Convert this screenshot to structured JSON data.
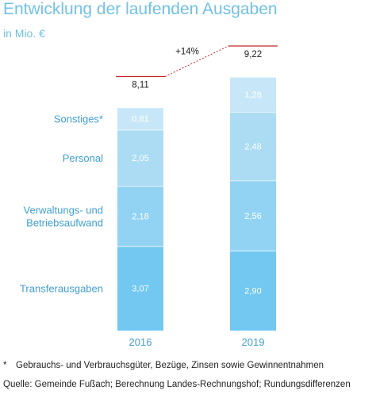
{
  "title": "Entwicklung der laufenden Ausgaben",
  "subtitle": "in Mio. €",
  "footnote": {
    "marker": "*",
    "text": "Gebrauchs- und Verbrauchsgüter, Bezüge, Zinsen sowie Gewinnentnahmen"
  },
  "source": "Quelle: Gemeinde Fußach; Berechnung Landes-Rechnungshof; Rundungsdifferenzen",
  "colors": {
    "title": "#72c1e6",
    "label": "#3f9fd3",
    "bar_text": "#ffffff",
    "total_line": "#c0282e",
    "seg_Transferausgaben": "#72c8f1",
    "seg_Verwaltungs": "#92d3f3",
    "seg_Personal": "#abdcf4",
    "seg_Sonstiges": "#c7e7f8"
  },
  "chart_data": {
    "type": "bar",
    "stacked": true,
    "categories": [
      "2016",
      "2019"
    ],
    "series": [
      {
        "name": "Transferausgaben",
        "lines": [
          "Transferausgaben"
        ],
        "values": [
          3.07,
          2.9
        ],
        "labels": [
          "3,07",
          "2,90"
        ],
        "color": "#72c8f1"
      },
      {
        "name": "Verwaltungs- und Betriebsaufwand",
        "lines": [
          "Verwaltungs- und",
          "Betriebsaufwand"
        ],
        "values": [
          2.18,
          2.56
        ],
        "labels": [
          "2,18",
          "2,56"
        ],
        "color": "#92d3f3"
      },
      {
        "name": "Personal",
        "lines": [
          "Personal"
        ],
        "values": [
          2.05,
          2.48
        ],
        "labels": [
          "2,05",
          "2,48"
        ],
        "color": "#abdcf4"
      },
      {
        "name": "Sonstiges*",
        "lines": [
          "Sonstiges*"
        ],
        "values": [
          0.81,
          1.28
        ],
        "labels": [
          "0,81",
          "1,28"
        ],
        "color": "#c7e7f8"
      }
    ],
    "totals": [
      8.11,
      9.22
    ],
    "total_labels": [
      "8,11",
      "9,22"
    ],
    "change_label": "+14%",
    "unit": "Mio. €",
    "ylim": [
      0,
      9.22
    ],
    "grid": false,
    "legend": "left, category labels beside first bar"
  }
}
